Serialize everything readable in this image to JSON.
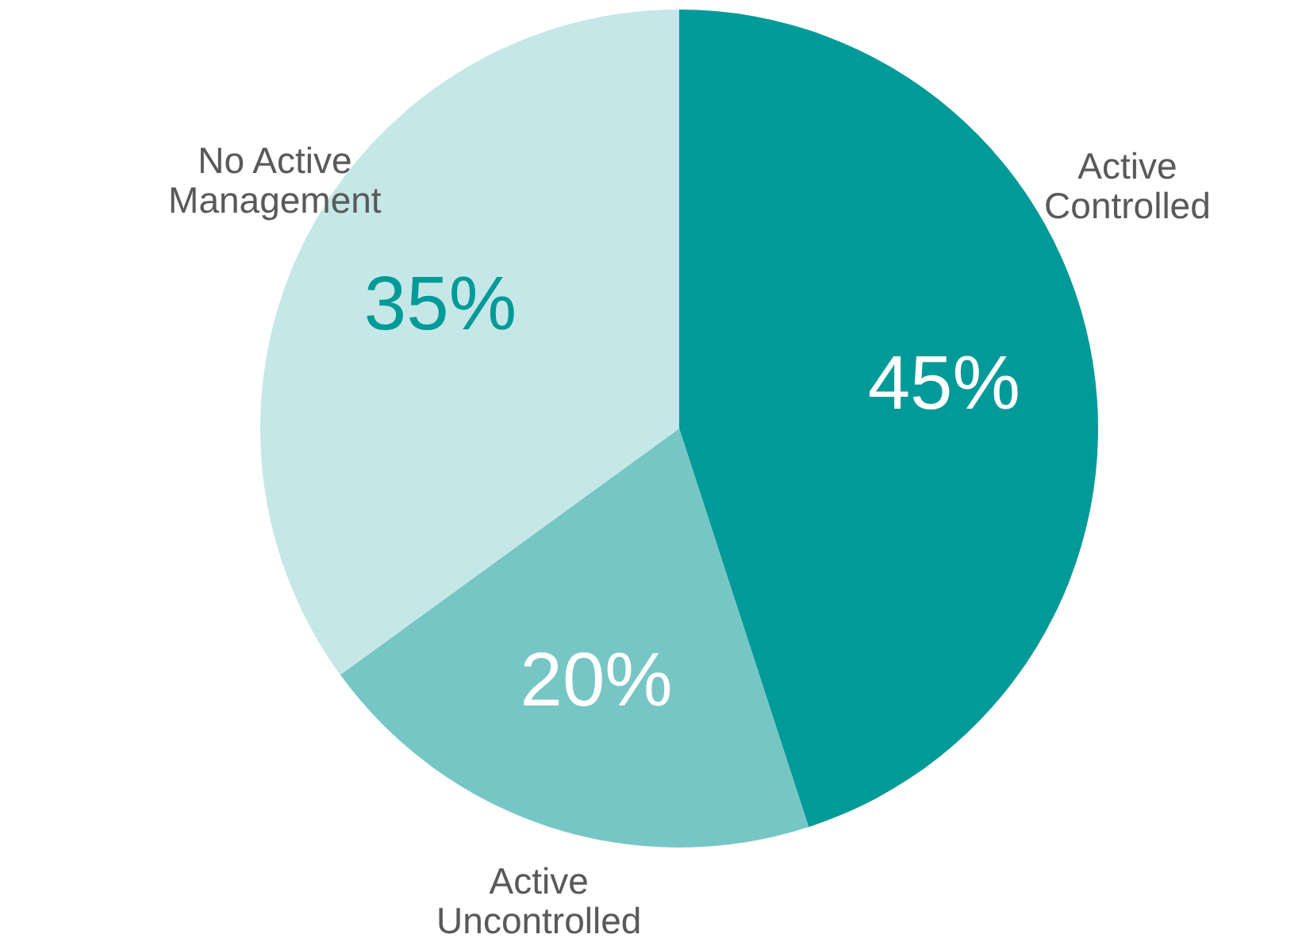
{
  "chart_data": {
    "type": "pie",
    "categories": [
      "Active Controlled",
      "Active Uncontrolled",
      "No Active Management"
    ],
    "values": [
      45,
      20,
      35
    ],
    "colors": [
      "#009a98",
      "#76c6c5",
      "#c5e7e8"
    ],
    "value_labels": [
      "45%",
      "20%",
      "35%"
    ]
  }
}
